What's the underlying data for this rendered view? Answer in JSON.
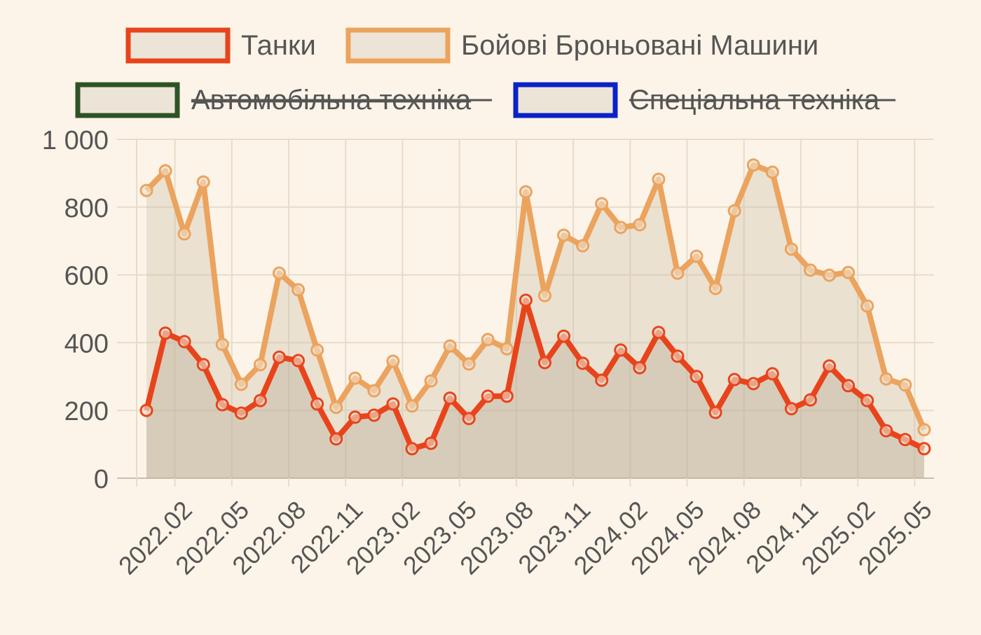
{
  "chart_data": {
    "type": "line",
    "title": "",
    "xlabel": "",
    "ylabel": "",
    "ylim": [
      0,
      1000
    ],
    "yticks": [
      "0",
      "200",
      "400",
      "600",
      "800",
      "1 000"
    ],
    "ytick_values": [
      0,
      200,
      400,
      600,
      800,
      1000
    ],
    "xtick_labels": [
      "2022.02",
      "2022.05",
      "2022.08",
      "2022.11",
      "2023.02",
      "2023.05",
      "2023.08",
      "2023.11",
      "2024.02",
      "2024.05",
      "2024.08",
      "2024.11",
      "2025.02",
      "2025.05"
    ],
    "x_start": "2022.02",
    "x_end": "2025.07",
    "grid": true,
    "legend_placement": "top",
    "series": [
      {
        "name": "Танки",
        "color": "#e8441c",
        "hidden": false,
        "values": [
          200,
          428,
          403,
          335,
          217,
          192,
          229,
          357,
          347,
          219,
          116,
          180,
          186,
          219,
          87,
          103,
          236,
          176,
          242,
          242,
          525,
          341,
          419,
          339,
          289,
          378,
          326,
          430,
          360,
          300,
          194,
          291,
          279,
          308,
          205,
          231,
          331,
          273,
          229,
          140,
          114,
          87
        ]
      },
      {
        "name": "Бойові Броньовані Машини",
        "color": "#eba35e",
        "hidden": false,
        "values": [
          849,
          907,
          721,
          874,
          395,
          277,
          335,
          605,
          556,
          378,
          209,
          295,
          258,
          345,
          213,
          287,
          390,
          337,
          409,
          382,
          845,
          539,
          717,
          686,
          810,
          740,
          748,
          882,
          605,
          655,
          560,
          789,
          924,
          903,
          676,
          614,
          599,
          607,
          508,
          293,
          275,
          143
        ]
      },
      {
        "name": "Автомобільна техніка",
        "color": "#2e5325",
        "hidden": true,
        "values": []
      },
      {
        "name": "Спеціальна техніка",
        "color": "#0a22c8",
        "hidden": true,
        "values": []
      }
    ]
  }
}
